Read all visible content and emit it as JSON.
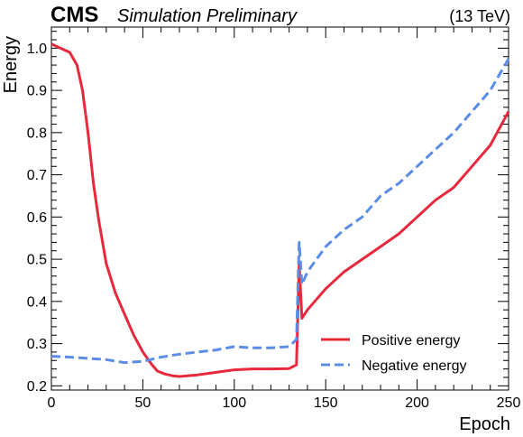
{
  "header": {
    "experiment": "CMS",
    "subtitle": "Simulation Preliminary",
    "energy": "(13 TeV)"
  },
  "chart_data": {
    "type": "line",
    "xlabel": "Epoch",
    "ylabel": "Energy",
    "xlim": [
      0,
      250
    ],
    "ylim": [
      0.19,
      1.05
    ],
    "xticks": [
      "0",
      "50",
      "100",
      "150",
      "200",
      "250"
    ],
    "yticks": [
      "0.2",
      "0.3",
      "0.4",
      "0.5",
      "0.6",
      "0.7",
      "0.8",
      "0.9",
      "1.0"
    ],
    "grid": false,
    "legend_position": "bottom-right",
    "series": [
      {
        "name": "Positive energy",
        "color": "#e8283c",
        "style": "solid",
        "x": [
          0,
          5,
          10,
          14,
          17,
          20,
          23,
          26,
          30,
          35,
          40,
          45,
          50,
          55,
          58,
          62,
          66,
          70,
          75,
          80,
          90,
          100,
          110,
          120,
          130,
          134,
          135.5,
          137,
          140,
          150,
          160,
          170,
          180,
          190,
          200,
          210,
          220,
          230,
          240,
          250
        ],
        "y": [
          1.01,
          1.0,
          0.99,
          0.96,
          0.9,
          0.8,
          0.68,
          0.59,
          0.49,
          0.42,
          0.37,
          0.32,
          0.28,
          0.25,
          0.235,
          0.228,
          0.224,
          0.222,
          0.224,
          0.226,
          0.232,
          0.238,
          0.24,
          0.24,
          0.241,
          0.25,
          0.49,
          0.36,
          0.38,
          0.43,
          0.47,
          0.5,
          0.53,
          0.56,
          0.6,
          0.64,
          0.67,
          0.72,
          0.77,
          0.85
        ]
      },
      {
        "name": "Negative energy",
        "color": "#5b8de6",
        "style": "dashed",
        "x": [
          0,
          10,
          20,
          30,
          40,
          50,
          60,
          70,
          80,
          90,
          100,
          110,
          120,
          130,
          134,
          135.5,
          137,
          140,
          150,
          160,
          170,
          180,
          190,
          200,
          210,
          220,
          230,
          240,
          250
        ],
        "y": [
          0.27,
          0.268,
          0.265,
          0.262,
          0.255,
          0.258,
          0.268,
          0.275,
          0.28,
          0.285,
          0.293,
          0.29,
          0.29,
          0.293,
          0.31,
          0.54,
          0.44,
          0.47,
          0.53,
          0.57,
          0.6,
          0.65,
          0.68,
          0.72,
          0.76,
          0.8,
          0.85,
          0.9,
          0.975
        ]
      }
    ]
  }
}
